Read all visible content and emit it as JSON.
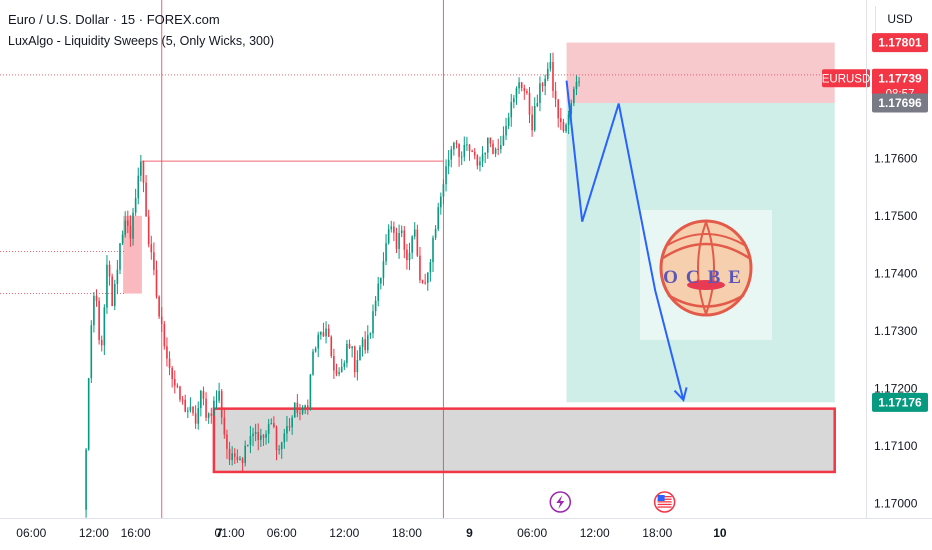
{
  "header": {
    "symbol_title": "Euro / U.S. Dollar · 15 · FOREX.com",
    "indicator_title": "LuxAlgo - Liquidity Sweeps (5, Only Wicks, 300)",
    "currency": "USD"
  },
  "watermark": {
    "text": "OCBE",
    "icon": "globe-logo-icon"
  },
  "event_icons": [
    {
      "name": "lightning-event-icon",
      "x": 56.7,
      "color": "#9c27b0"
    },
    {
      "name": "us-flag-event-icon",
      "x": 66.7,
      "color": "#f23645"
    }
  ],
  "price_labels": [
    {
      "text": "1.17801",
      "value": 1.17801,
      "bg": "#f23645",
      "fg": "#ffffff"
    },
    {
      "text": "EURUSD",
      "tag": true,
      "value": 1.17739,
      "bg": "#f23645",
      "fg": "#ffffff"
    },
    {
      "text": "1.17739",
      "sub": "08:57",
      "value": 1.17739,
      "bg": "#f23645",
      "fg": "#ffffff"
    },
    {
      "text": "1.17696",
      "value": 1.17696,
      "bg": "#787b86",
      "fg": "#ffffff"
    },
    {
      "text": "1.17176",
      "value": 1.17176,
      "bg": "#089981",
      "fg": "#ffffff"
    }
  ],
  "chart_data": {
    "type": "candlestick",
    "title": "Euro / U.S. Dollar · 15 · FOREX.com",
    "x_unit": "hours since Jul 8 00:00 (chart time axis)",
    "xlim": [
      3.0,
      86.0
    ],
    "ylim": [
      1.16975,
      1.17875
    ],
    "grid": false,
    "x_ticks": [
      {
        "label": "06:00",
        "x": 6
      },
      {
        "label": "12:00",
        "x": 12
      },
      {
        "label": "16:00",
        "x": 16
      },
      {
        "label": "7",
        "x": 24
      },
      {
        "label": "01:00",
        "x": 25
      },
      {
        "label": "06:00",
        "x": 30
      },
      {
        "label": "12:00",
        "x": 36
      },
      {
        "label": "18:00",
        "x": 42
      },
      {
        "label": "9",
        "x": 48
      },
      {
        "label": "06:00",
        "x": 54
      },
      {
        "label": "12:00",
        "x": 60
      },
      {
        "label": "18:00",
        "x": 66
      },
      {
        "label": "10",
        "x": 72
      }
    ],
    "y_ticks": [
      {
        "label": "1.17600",
        "value": 1.176
      },
      {
        "label": "1.17500",
        "value": 1.175
      },
      {
        "label": "1.17400",
        "value": 1.174
      },
      {
        "label": "1.17300",
        "value": 1.173
      },
      {
        "label": "1.17200",
        "value": 1.172
      },
      {
        "label": "1.17100",
        "value": 1.171
      },
      {
        "label": "1.17000",
        "value": 1.17
      }
    ],
    "colors": {
      "up": "#089981",
      "down": "#f23645"
    },
    "anchors": [
      [
        11.0,
        1.16985
      ],
      [
        11.6,
        1.1726
      ],
      [
        12.1,
        1.1738
      ],
      [
        12.7,
        1.1725
      ],
      [
        13.3,
        1.1742
      ],
      [
        13.8,
        1.1734
      ],
      [
        14.4,
        1.1744
      ],
      [
        15.0,
        1.175
      ],
      [
        15.5,
        1.1745
      ],
      [
        16.1,
        1.1756
      ],
      [
        16.6,
        1.17595
      ],
      [
        17.2,
        1.1746
      ],
      [
        17.8,
        1.1739
      ],
      [
        18.3,
        1.1732
      ],
      [
        18.9,
        1.1727
      ],
      [
        19.5,
        1.1722
      ],
      [
        20.0,
        1.1719
      ],
      [
        20.6,
        1.1717
      ],
      [
        21.2,
        1.1716
      ],
      [
        21.7,
        1.1714
      ],
      [
        22.3,
        1.1719
      ],
      [
        22.9,
        1.1715
      ],
      [
        23.4,
        1.1717
      ],
      [
        24.0,
        1.1719
      ],
      [
        24.6,
        1.1711
      ],
      [
        25.1,
        1.1707
      ],
      [
        25.7,
        1.1709
      ],
      [
        26.3,
        1.1708
      ],
      [
        26.8,
        1.1712
      ],
      [
        27.4,
        1.1713
      ],
      [
        28.0,
        1.1711
      ],
      [
        28.5,
        1.1712
      ],
      [
        29.1,
        1.1714
      ],
      [
        29.7,
        1.1709
      ],
      [
        30.2,
        1.1712
      ],
      [
        30.8,
        1.1714
      ],
      [
        31.4,
        1.1717
      ],
      [
        31.9,
        1.1715
      ],
      [
        32.5,
        1.1718
      ],
      [
        33.0,
        1.1726
      ],
      [
        33.6,
        1.1729
      ],
      [
        34.2,
        1.173
      ],
      [
        34.7,
        1.1726
      ],
      [
        35.3,
        1.1722
      ],
      [
        35.9,
        1.1723
      ],
      [
        36.4,
        1.1729
      ],
      [
        37.0,
        1.1724
      ],
      [
        37.6,
        1.1728
      ],
      [
        38.1,
        1.1727
      ],
      [
        38.7,
        1.1732
      ],
      [
        39.3,
        1.1739
      ],
      [
        39.8,
        1.1743
      ],
      [
        40.4,
        1.1748
      ],
      [
        41.0,
        1.1744
      ],
      [
        41.5,
        1.1748
      ],
      [
        42.1,
        1.1742
      ],
      [
        42.7,
        1.1748
      ],
      [
        43.2,
        1.1739
      ],
      [
        43.8,
        1.1737
      ],
      [
        44.4,
        1.1745
      ],
      [
        44.9,
        1.175
      ],
      [
        45.5,
        1.1756
      ],
      [
        46.1,
        1.1761
      ],
      [
        46.6,
        1.1764
      ],
      [
        47.2,
        1.176
      ],
      [
        47.8,
        1.1762
      ],
      [
        48.3,
        1.176
      ],
      [
        48.9,
        1.1759
      ],
      [
        49.5,
        1.1762
      ],
      [
        50.0,
        1.1763
      ],
      [
        50.6,
        1.1761
      ],
      [
        51.1,
        1.1764
      ],
      [
        51.7,
        1.1768
      ],
      [
        52.3,
        1.177
      ],
      [
        52.8,
        1.1774
      ],
      [
        53.4,
        1.1771
      ],
      [
        54.0,
        1.1766
      ],
      [
        54.5,
        1.177
      ],
      [
        55.1,
        1.1774
      ],
      [
        55.7,
        1.1776
      ],
      [
        56.2,
        1.177
      ],
      [
        56.8,
        1.1765
      ],
      [
        57.4,
        1.1766
      ],
      [
        57.9,
        1.1771
      ],
      [
        58.5,
        1.1774
      ]
    ],
    "vertical_lines": [
      {
        "x": 18.5,
        "color": "#f23645"
      },
      {
        "x": 45.5,
        "color": "#f23645"
      }
    ],
    "horizontal_levels": [
      {
        "value": 1.17745,
        "x_start": 3,
        "color": "#f23645",
        "style": "dotted"
      },
      {
        "value": 1.17595,
        "x_start": 16.6,
        "x_end": 45.5,
        "color": "#f23645",
        "style": "solid"
      },
      {
        "value": 1.17438,
        "x_start": 3,
        "x_end": 15.0,
        "color": "#f23645",
        "style": "dotted"
      },
      {
        "value": 1.17365,
        "x_start": 3,
        "x_end": 15.0,
        "color": "#f23645",
        "style": "dotted"
      }
    ],
    "sweep_box": {
      "x_start": 14.8,
      "x_end": 16.6,
      "y_top": 1.175,
      "y_bottom": 1.17365,
      "color": "#f23645"
    },
    "demand_zone": {
      "x_start": 23.5,
      "x_end": 83.0,
      "y_top": 1.17165,
      "y_bottom": 1.17055,
      "fill": "#d1d1d1",
      "stroke": "#f23645"
    },
    "short_position": {
      "x_start": 57.3,
      "x_end": 83.0,
      "entry": 1.17696,
      "stop": 1.17801,
      "target": 1.17176,
      "risk_fill": "#f7c9cc",
      "reward_fill": "#cfeee7"
    },
    "projection_path": {
      "color": "#2962ff",
      "points": [
        [
          57.3,
          1.17735
        ],
        [
          58.8,
          1.1749
        ],
        [
          62.3,
          1.17695
        ],
        [
          65.8,
          1.1737
        ],
        [
          68.5,
          1.1718
        ]
      ]
    }
  }
}
